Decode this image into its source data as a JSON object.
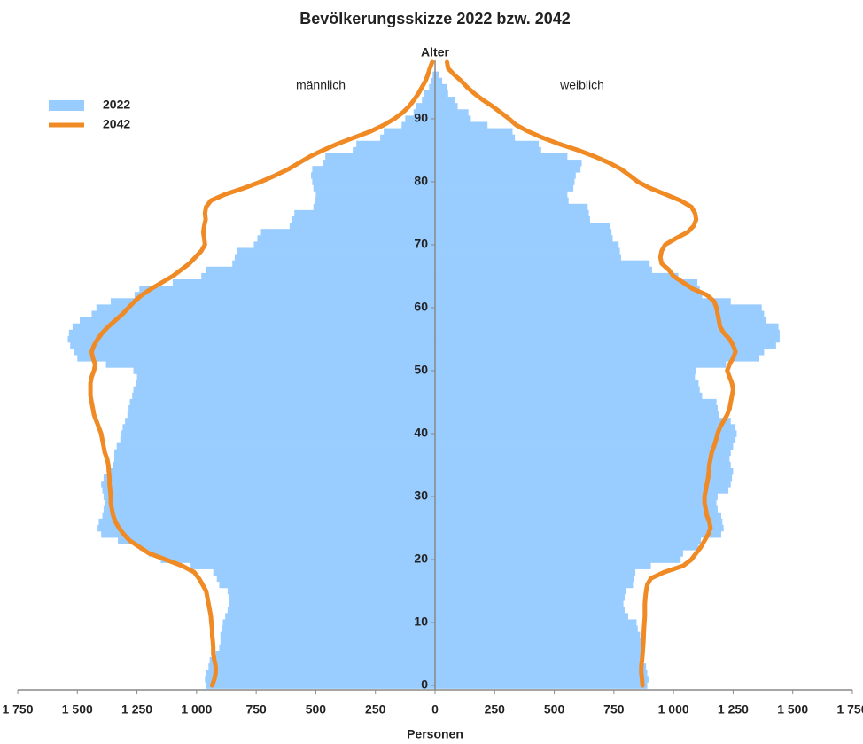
{
  "chart_data": {
    "type": "pyramid",
    "title": "Bevölkerungsskizze 2022 bzw. 2042",
    "y_label": "Alter",
    "x_label": "Personen",
    "left_label": "männlich",
    "right_label": "weiblich",
    "xlim": [
      0,
      1750
    ],
    "xticks": [
      0,
      250,
      500,
      750,
      {
        "value": 1000,
        "label": "1 000"
      },
      {
        "value": 1250,
        "label": "1 250"
      },
      {
        "value": 1500,
        "label": "1 500"
      },
      {
        "value": 1750,
        "label": "1 750"
      }
    ],
    "ylim": [
      0,
      99
    ],
    "yticks": [
      0,
      10,
      20,
      30,
      40,
      50,
      60,
      70,
      80,
      90
    ],
    "y": [
      0,
      1,
      2,
      3,
      4,
      5,
      6,
      7,
      8,
      9,
      10,
      11,
      12,
      13,
      14,
      15,
      16,
      17,
      18,
      19,
      20,
      21,
      22,
      23,
      24,
      25,
      26,
      27,
      28,
      29,
      30,
      31,
      32,
      33,
      34,
      35,
      36,
      37,
      38,
      39,
      40,
      41,
      42,
      43,
      44,
      45,
      46,
      47,
      48,
      49,
      50,
      51,
      52,
      53,
      54,
      55,
      56,
      57,
      58,
      59,
      60,
      61,
      62,
      63,
      64,
      65,
      66,
      67,
      68,
      69,
      70,
      71,
      72,
      73,
      74,
      75,
      76,
      77,
      78,
      79,
      80,
      81,
      82,
      83,
      84,
      85,
      86,
      87,
      88,
      89,
      90,
      91,
      92,
      93,
      94,
      95,
      96,
      97,
      98,
      99
    ],
    "series": [
      {
        "name": "2022",
        "color": "#99ccff",
        "style": "bar",
        "male": [
          960,
          965,
          960,
          950,
          945,
          920,
          905,
          900,
          900,
          895,
          890,
          880,
          870,
          865,
          865,
          870,
          905,
          915,
          930,
          1025,
          1150,
          1200,
          1240,
          1330,
          1400,
          1415,
          1410,
          1395,
          1390,
          1385,
          1390,
          1395,
          1400,
          1390,
          1360,
          1350,
          1345,
          1345,
          1335,
          1320,
          1315,
          1310,
          1300,
          1290,
          1285,
          1280,
          1270,
          1265,
          1255,
          1250,
          1265,
          1380,
          1500,
          1515,
          1530,
          1540,
          1535,
          1520,
          1490,
          1440,
          1420,
          1360,
          1260,
          1240,
          1100,
          980,
          960,
          850,
          840,
          830,
          760,
          745,
          730,
          610,
          600,
          590,
          510,
          505,
          500,
          510,
          515,
          520,
          515,
          470,
          460,
          345,
          330,
          230,
          215,
          140,
          125,
          90,
          80,
          55,
          45,
          25,
          18,
          10,
          null,
          null
        ],
        "female": [
          890,
          895,
          890,
          885,
          870,
          870,
          868,
          865,
          860,
          850,
          845,
          810,
          795,
          790,
          795,
          800,
          830,
          835,
          840,
          905,
          1030,
          1040,
          1105,
          1115,
          1200,
          1210,
          1205,
          1200,
          1185,
          1180,
          1185,
          1230,
          1240,
          1245,
          1250,
          1240,
          1235,
          1240,
          1250,
          1260,
          1265,
          1260,
          1240,
          1190,
          1185,
          1180,
          1120,
          1110,
          1105,
          1090,
          1095,
          1220,
          1360,
          1380,
          1430,
          1445,
          1445,
          1440,
          1390,
          1380,
          1370,
          1240,
          1120,
          1110,
          1100,
          1020,
          910,
          900,
          780,
          775,
          770,
          745,
          740,
          735,
          650,
          645,
          640,
          560,
          555,
          580,
          585,
          590,
          610,
          615,
          555,
          445,
          435,
          335,
          325,
          220,
          150,
          140,
          95,
          85,
          55,
          50,
          30,
          15,
          null,
          null
        ]
      },
      {
        "name": "2042",
        "color": "#f08a24",
        "style": "line",
        "male": [
          935,
          925,
          920,
          920,
          925,
          930,
          930,
          932,
          935,
          935,
          938,
          940,
          945,
          950,
          955,
          960,
          975,
          990,
          1010,
          1060,
          1130,
          1200,
          1240,
          1280,
          1305,
          1325,
          1340,
          1350,
          1355,
          1360,
          1360,
          1362,
          1365,
          1365,
          1368,
          1370,
          1375,
          1385,
          1390,
          1395,
          1400,
          1410,
          1420,
          1430,
          1435,
          1440,
          1445,
          1445,
          1445,
          1440,
          1430,
          1425,
          1435,
          1440,
          1430,
          1415,
          1395,
          1370,
          1340,
          1310,
          1285,
          1260,
          1230,
          1190,
          1145,
          1100,
          1065,
          1030,
          1005,
          980,
          965,
          968,
          972,
          968,
          962,
          965,
          960,
          940,
          880,
          800,
          730,
          670,
          615,
          570,
          525,
          470,
          410,
          340,
          270,
          215,
          170,
          135,
          108,
          88,
          70,
          55,
          40,
          30,
          22,
          12
        ],
        "female": [
          870,
          868,
          865,
          865,
          868,
          870,
          872,
          874,
          875,
          876,
          878,
          880,
          880,
          880,
          882,
          885,
          890,
          905,
          960,
          1040,
          1075,
          1095,
          1115,
          1130,
          1145,
          1155,
          1150,
          1140,
          1135,
          1130,
          1130,
          1135,
          1140,
          1145,
          1148,
          1150,
          1155,
          1160,
          1170,
          1178,
          1185,
          1195,
          1210,
          1225,
          1235,
          1240,
          1245,
          1250,
          1245,
          1235,
          1225,
          1235,
          1250,
          1260,
          1250,
          1235,
          1210,
          1195,
          1190,
          1185,
          1180,
          1170,
          1140,
          1080,
          1040,
          1000,
          980,
          950,
          945,
          950,
          965,
          1010,
          1060,
          1085,
          1095,
          1090,
          1075,
          1030,
          965,
          900,
          850,
          815,
          780,
          730,
          670,
          600,
          520,
          450,
          390,
          340,
          310,
          275,
          240,
          200,
          165,
          135,
          110,
          80,
          55,
          50
        ]
      }
    ]
  }
}
